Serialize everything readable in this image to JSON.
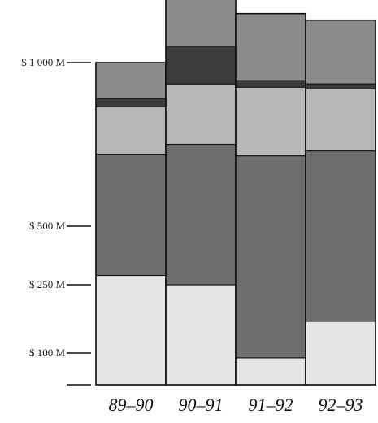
{
  "chart_data": {
    "type": "bar",
    "stacked": true,
    "categories": [
      "89-90",
      "90-91",
      "91-92",
      "92-93"
    ],
    "category_labels": [
      "89–90",
      "90–91",
      "91–92",
      "92–93"
    ],
    "axis_ticks": [
      {
        "value": 100,
        "label": "$ 100 M"
      },
      {
        "value": 250,
        "label": "$ 250 M"
      },
      {
        "value": 500,
        "label": "$ 500 M"
      },
      {
        "value": 1000,
        "label": "$ 1 000 M"
      }
    ],
    "totals": [
      1000,
      1200,
      1150,
      1130
    ],
    "series": [
      {
        "color": "#e4e4e4",
        "values": [
          290,
          250,
          85,
          170
        ]
      },
      {
        "color": "#6f6f6f",
        "values": [
          430,
          500,
          630,
          560
        ]
      },
      {
        "color": "#b8b8b8",
        "values": [
          145,
          185,
          210,
          190
        ]
      },
      {
        "color": "#3c3c3c",
        "values": [
          25,
          115,
          20,
          15
        ]
      },
      {
        "color": "#8c8c8c",
        "values": [
          110,
          150,
          205,
          195
        ]
      }
    ],
    "grid": false,
    "legend": "none"
  }
}
